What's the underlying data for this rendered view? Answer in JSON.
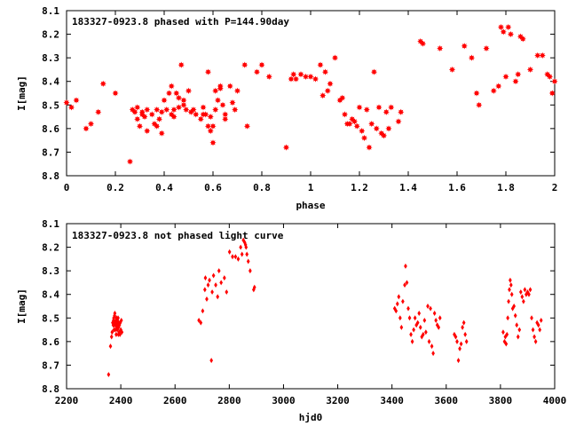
{
  "chart_data": [
    {
      "type": "scatter",
      "title": "183327-0923.8 phased with P=144.90day",
      "xlabel": "phase",
      "ylabel": "I[mag]",
      "xlim": [
        0,
        2
      ],
      "ylim": [
        8.8,
        8.1
      ],
      "y_inverted": true,
      "xticks": [
        "0",
        "0.2",
        "0.4",
        "0.6",
        "0.8",
        "1",
        "1.2",
        "1.4",
        "1.6",
        "1.8",
        "2"
      ],
      "yticks": [
        "8.1",
        "8.2",
        "8.3",
        "8.4",
        "8.5",
        "8.6",
        "8.7",
        "8.8"
      ],
      "marker": "filled-star",
      "color": "#ff0000",
      "x": [
        0.0,
        0.02,
        0.04,
        0.08,
        0.1,
        0.13,
        0.15,
        0.2,
        0.26,
        0.27,
        0.28,
        0.29,
        0.29,
        0.3,
        0.31,
        0.31,
        0.32,
        0.33,
        0.33,
        0.35,
        0.36,
        0.37,
        0.37,
        0.38,
        0.39,
        0.39,
        0.4,
        0.41,
        0.42,
        0.43,
        0.43,
        0.44,
        0.44,
        0.45,
        0.46,
        0.46,
        0.47,
        0.48,
        0.48,
        0.49,
        0.5,
        0.51,
        0.52,
        0.53,
        0.55,
        0.56,
        0.56,
        0.57,
        0.58,
        0.58,
        0.59,
        0.59,
        0.6,
        0.6,
        0.61,
        0.61,
        0.62,
        0.63,
        0.63,
        0.64,
        0.65,
        0.65,
        0.67,
        0.68,
        0.69,
        0.7,
        0.73,
        0.74,
        0.78,
        0.8,
        0.83,
        0.9,
        0.92,
        0.93,
        0.94,
        0.96,
        0.98,
        1.0,
        1.02,
        1.04,
        1.05,
        1.06,
        1.07,
        1.08,
        1.1,
        1.12,
        1.13,
        1.14,
        1.15,
        1.16,
        1.17,
        1.18,
        1.19,
        1.2,
        1.21,
        1.22,
        1.23,
        1.24,
        1.25,
        1.26,
        1.27,
        1.28,
        1.29,
        1.3,
        1.31,
        1.32,
        1.33,
        1.36,
        1.37,
        1.45,
        1.46,
        1.53,
        1.58,
        1.63,
        1.66,
        1.68,
        1.69,
        1.72,
        1.75,
        1.77,
        1.78,
        1.79,
        1.8,
        1.81,
        1.82,
        1.84,
        1.85,
        1.86,
        1.87,
        1.9,
        1.93,
        1.95,
        1.97,
        1.98,
        1.99,
        2.0
      ],
      "y": [
        8.49,
        8.51,
        8.48,
        8.6,
        8.58,
        8.53,
        8.41,
        8.45,
        8.74,
        8.52,
        8.53,
        8.56,
        8.51,
        8.59,
        8.54,
        8.53,
        8.55,
        8.52,
        8.61,
        8.54,
        8.58,
        8.59,
        8.52,
        8.56,
        8.62,
        8.53,
        8.48,
        8.52,
        8.45,
        8.54,
        8.42,
        8.55,
        8.52,
        8.45,
        8.47,
        8.51,
        8.33,
        8.5,
        8.48,
        8.52,
        8.44,
        8.53,
        8.52,
        8.54,
        8.56,
        8.51,
        8.54,
        8.54,
        8.59,
        8.36,
        8.55,
        8.61,
        8.66,
        8.59,
        8.44,
        8.52,
        8.48,
        8.42,
        8.43,
        8.5,
        8.56,
        8.54,
        8.42,
        8.49,
        8.52,
        8.44,
        8.33,
        8.59,
        8.36,
        8.33,
        8.38,
        8.68,
        8.39,
        8.37,
        8.39,
        8.37,
        8.38,
        8.38,
        8.39,
        8.33,
        8.46,
        8.36,
        8.44,
        8.41,
        8.3,
        8.48,
        8.47,
        8.54,
        8.58,
        8.58,
        8.56,
        8.57,
        8.59,
        8.51,
        8.61,
        8.64,
        8.52,
        8.68,
        8.58,
        8.36,
        8.6,
        8.51,
        8.62,
        8.63,
        8.53,
        8.6,
        8.51,
        8.57,
        8.53,
        8.23,
        8.24,
        8.26,
        8.35,
        8.25,
        8.3,
        8.45,
        8.5,
        8.26,
        8.44,
        8.42,
        8.17,
        8.19,
        8.38,
        8.17,
        8.2,
        8.4,
        8.37,
        8.21,
        8.22,
        8.35,
        8.29,
        8.29,
        8.37,
        8.38,
        8.45,
        8.4
      ]
    },
    {
      "type": "scatter",
      "title": "183327-0923.8 not phased light curve",
      "xlabel": "hjd0",
      "ylabel": "I[mag]",
      "xlim": [
        2200,
        4000
      ],
      "ylim": [
        8.8,
        8.1
      ],
      "y_inverted": true,
      "xticks": [
        "2200",
        "2400",
        "2600",
        "2800",
        "3000",
        "3200",
        "3400",
        "3600",
        "3800",
        "4000"
      ],
      "yticks": [
        "8.1",
        "8.2",
        "8.3",
        "8.4",
        "8.5",
        "8.6",
        "8.7",
        "8.8"
      ],
      "marker": "filled-diamond",
      "color": "#ff0000",
      "x": [
        2355,
        2362,
        2366,
        2368,
        2370,
        2372,
        2373,
        2374,
        2375,
        2376,
        2377,
        2378,
        2379,
        2380,
        2381,
        2382,
        2383,
        2384,
        2385,
        2386,
        2387,
        2388,
        2389,
        2390,
        2391,
        2392,
        2393,
        2394,
        2395,
        2397,
        2398,
        2400,
        2402,
        2404,
        2688,
        2695,
        2702,
        2710,
        2712,
        2717,
        2722,
        2727,
        2734,
        2737,
        2742,
        2750,
        2757,
        2762,
        2770,
        2782,
        2790,
        2801,
        2812,
        2823,
        2833,
        2842,
        2847,
        2852,
        2857,
        2860,
        2862,
        2865,
        2870,
        2877,
        2890,
        2893,
        3410,
        3415,
        3420,
        3425,
        3430,
        3435,
        3440,
        3447,
        3450,
        3455,
        3460,
        3465,
        3470,
        3475,
        3480,
        3485,
        3490,
        3495,
        3500,
        3505,
        3510,
        3515,
        3520,
        3525,
        3532,
        3537,
        3542,
        3547,
        3552,
        3557,
        3562,
        3567,
        3572,
        3577,
        3630,
        3635,
        3640,
        3645,
        3650,
        3655,
        3660,
        3665,
        3670,
        3675,
        3810,
        3815,
        3818,
        3821,
        3824,
        3827,
        3830,
        3833,
        3836,
        3839,
        3842,
        3845,
        3850,
        3855,
        3860,
        3865,
        3870,
        3875,
        3880,
        3885,
        3890,
        3895,
        3900,
        3905,
        3910,
        3915,
        3920,
        3925,
        3930,
        3935,
        3940,
        3945,
        3950
      ],
      "y": [
        8.74,
        8.62,
        8.58,
        8.56,
        8.52,
        8.53,
        8.51,
        8.5,
        8.55,
        8.53,
        8.49,
        8.48,
        8.52,
        8.55,
        8.53,
        8.51,
        8.57,
        8.5,
        8.54,
        8.52,
        8.55,
        8.51,
        8.53,
        8.5,
        8.57,
        8.54,
        8.52,
        8.56,
        8.53,
        8.57,
        8.52,
        8.55,
        8.51,
        8.56,
        8.51,
        8.52,
        8.47,
        8.38,
        8.33,
        8.42,
        8.36,
        8.34,
        8.68,
        8.39,
        8.32,
        8.36,
        8.41,
        8.3,
        8.35,
        8.33,
        8.39,
        8.22,
        8.24,
        8.24,
        8.25,
        8.2,
        8.23,
        8.17,
        8.18,
        8.19,
        8.2,
        8.23,
        8.26,
        8.3,
        8.38,
        8.37,
        8.46,
        8.47,
        8.44,
        8.41,
        8.5,
        8.54,
        8.43,
        8.36,
        8.28,
        8.35,
        8.46,
        8.5,
        8.57,
        8.6,
        8.55,
        8.5,
        8.53,
        8.52,
        8.48,
        8.54,
        8.58,
        8.57,
        8.51,
        8.56,
        8.45,
        8.6,
        8.46,
        8.62,
        8.65,
        8.48,
        8.51,
        8.53,
        8.54,
        8.5,
        8.57,
        8.58,
        8.6,
        8.68,
        8.63,
        8.61,
        8.54,
        8.52,
        8.57,
        8.6,
        8.56,
        8.6,
        8.58,
        8.61,
        8.57,
        8.5,
        8.43,
        8.38,
        8.34,
        8.36,
        8.4,
        8.46,
        8.45,
        8.49,
        8.53,
        8.58,
        8.55,
        8.39,
        8.41,
        8.43,
        8.38,
        8.4,
        8.39,
        8.4,
        8.38,
        8.5,
        8.55,
        8.58,
        8.6,
        8.52,
        8.53,
        8.55,
        8.51
      ]
    }
  ]
}
